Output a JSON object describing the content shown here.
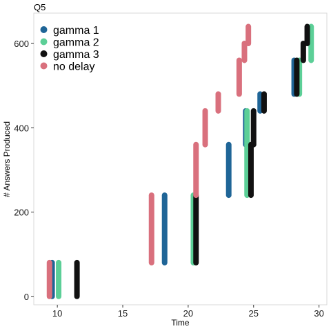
{
  "chart_data": {
    "type": "line",
    "title": "Q5",
    "xlabel": "Time",
    "ylabel": "# Answers Produced",
    "xlim": [
      8.2,
      30.6
    ],
    "ylim": [
      -20,
      672
    ],
    "x_ticks": [
      10,
      15,
      20,
      25,
      30
    ],
    "y_ticks": [
      0,
      200,
      400,
      600
    ],
    "grid": false,
    "legend_position": "top-left",
    "series": [
      {
        "name": "gamma 1",
        "color": "#1f6597",
        "segments": [
          {
            "x": 9.6,
            "y": [
              0,
              80
            ]
          },
          {
            "x": 18.2,
            "y": [
              80,
              240
            ]
          },
          {
            "x": 23.1,
            "y": [
              240,
              360
            ]
          },
          {
            "x": 24.4,
            "y": [
              360,
              440
            ]
          },
          {
            "x": 25.5,
            "y": [
              440,
              480
            ]
          },
          {
            "x": 28.1,
            "y": [
              480,
              560
            ]
          }
        ]
      },
      {
        "name": "gamma 2",
        "color": "#5ccf97",
        "segments": [
          {
            "x": 10.1,
            "y": [
              0,
              80
            ]
          },
          {
            "x": 20.4,
            "y": [
              80,
              240
            ]
          },
          {
            "x": 24.5,
            "y": [
              240,
              440
            ]
          },
          {
            "x": 28.5,
            "y": [
              480,
              560
            ]
          },
          {
            "x": 29.4,
            "y": [
              560,
              640
            ]
          }
        ]
      },
      {
        "name": "gamma 3",
        "color": "#111111",
        "segments": [
          {
            "x": 11.5,
            "y": [
              0,
              80
            ]
          },
          {
            "x": 20.6,
            "y": [
              80,
              240
            ]
          },
          {
            "x": 24.8,
            "y": [
              240,
              360
            ]
          },
          {
            "x": 25.0,
            "y": [
              360,
              440
            ]
          },
          {
            "x": 25.8,
            "y": [
              440,
              480
            ]
          },
          {
            "x": 28.3,
            "y": [
              480,
              560
            ]
          },
          {
            "x": 28.8,
            "y": [
              560,
              600
            ]
          },
          {
            "x": 29.1,
            "y": [
              600,
              640
            ]
          }
        ]
      },
      {
        "name": "no delay",
        "color": "#d9707d",
        "segments": [
          {
            "x": 9.4,
            "y": [
              0,
              80
            ]
          },
          {
            "x": 17.2,
            "y": [
              80,
              240
            ]
          },
          {
            "x": 20.6,
            "y": [
              240,
              360
            ]
          },
          {
            "x": 21.3,
            "y": [
              360,
              440
            ]
          },
          {
            "x": 22.3,
            "y": [
              440,
              480
            ]
          },
          {
            "x": 23.9,
            "y": [
              480,
              560
            ]
          },
          {
            "x": 24.3,
            "y": [
              560,
              600
            ]
          },
          {
            "x": 24.6,
            "y": [
              600,
              640
            ]
          }
        ]
      }
    ]
  }
}
